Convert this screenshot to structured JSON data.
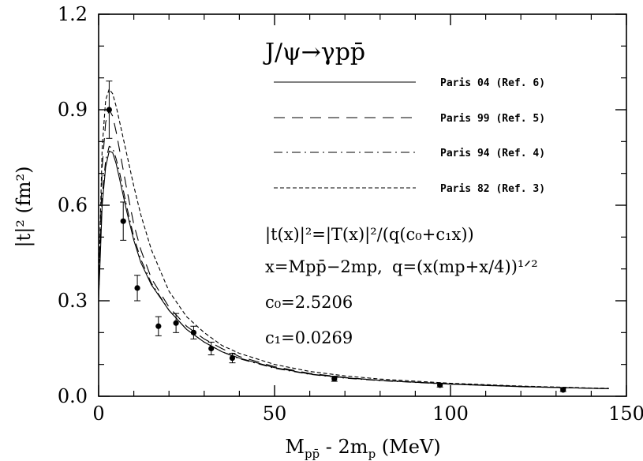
{
  "chart_data": {
    "type": "line",
    "title": "J/ψ→γpp̄",
    "xlabel": "Mpp̄ - 2mp (MeV)",
    "ylabel": "|t|² (fm²)",
    "xlim": [
      0,
      150
    ],
    "ylim": [
      0,
      1.2
    ],
    "xticks": [
      0,
      50,
      100,
      150
    ],
    "xtick_labels": [
      "0",
      "50",
      "100",
      "150"
    ],
    "yticks": [
      0,
      0.3,
      0.6,
      0.9,
      1.2
    ],
    "ytick_labels": [
      "0.0",
      "0.3",
      "0.6",
      "0.9",
      "1.2"
    ],
    "legend_position": "top-right",
    "grid": false,
    "series": [
      {
        "name": "Paris 04 (Ref. 6)",
        "style": "solid",
        "x": [
          0,
          1,
          2,
          3,
          4,
          5,
          6,
          8,
          10,
          12,
          15,
          20,
          25,
          30,
          35,
          40,
          50,
          60,
          70,
          80,
          100,
          120,
          140,
          145
        ],
        "y": [
          0.3,
          0.6,
          0.72,
          0.77,
          0.765,
          0.73,
          0.68,
          0.58,
          0.49,
          0.42,
          0.35,
          0.27,
          0.21,
          0.17,
          0.14,
          0.12,
          0.09,
          0.07,
          0.058,
          0.05,
          0.039,
          0.031,
          0.025,
          0.024
        ]
      },
      {
        "name": "Paris 99 (Ref. 5)",
        "style": "long-dash",
        "x": [
          0,
          1,
          2,
          3,
          4,
          5,
          6,
          8,
          10,
          12,
          15,
          20,
          25,
          30,
          35,
          40,
          50,
          60,
          70,
          80,
          100,
          120,
          140,
          145
        ],
        "y": [
          0.32,
          0.72,
          0.86,
          0.9,
          0.88,
          0.83,
          0.77,
          0.65,
          0.54,
          0.46,
          0.37,
          0.28,
          0.22,
          0.18,
          0.15,
          0.125,
          0.093,
          0.072,
          0.059,
          0.05,
          0.038,
          0.03,
          0.025,
          0.024
        ]
      },
      {
        "name": "Paris 94 (Ref. 4)",
        "style": "dash-dot",
        "x": [
          0,
          1,
          2,
          3,
          4,
          5,
          6,
          8,
          10,
          12,
          15,
          20,
          25,
          30,
          35,
          40,
          50,
          60,
          70,
          80,
          100,
          120,
          140,
          145
        ],
        "y": [
          0.31,
          0.63,
          0.74,
          0.785,
          0.78,
          0.745,
          0.7,
          0.595,
          0.5,
          0.43,
          0.355,
          0.27,
          0.21,
          0.17,
          0.14,
          0.118,
          0.088,
          0.069,
          0.057,
          0.049,
          0.038,
          0.03,
          0.025,
          0.024
        ]
      },
      {
        "name": "Paris 82 (Ref. 3)",
        "style": "short-dash",
        "x": [
          0,
          1,
          2,
          3,
          4,
          5,
          6,
          8,
          10,
          12,
          15,
          20,
          25,
          30,
          35,
          40,
          50,
          60,
          70,
          80,
          100,
          120,
          140,
          145
        ],
        "y": [
          0.34,
          0.78,
          0.93,
          0.965,
          0.95,
          0.91,
          0.86,
          0.76,
          0.66,
          0.57,
          0.46,
          0.33,
          0.25,
          0.2,
          0.16,
          0.135,
          0.1,
          0.078,
          0.064,
          0.054,
          0.041,
          0.032,
          0.026,
          0.025
        ]
      }
    ],
    "data_points": {
      "x": [
        3,
        7,
        11,
        17,
        22,
        27,
        32,
        38,
        67,
        97,
        132
      ],
      "y": [
        0.9,
        0.55,
        0.34,
        0.22,
        0.23,
        0.2,
        0.15,
        0.12,
        0.055,
        0.035,
        0.02
      ],
      "err": [
        0.09,
        0.06,
        0.04,
        0.03,
        0.03,
        0.02,
        0.02,
        0.015,
        0.008,
        0.006,
        0.005
      ]
    },
    "annotations": {
      "formula_1": "|t(x)|²=|T(x)|²/(q(c₀+c₁x))",
      "formula_2": "x=Mpp̄−2mp,",
      "formula_3": "q=(x(mp+x/4))¹ᐟ²",
      "c0": "c₀=2.5206",
      "c1": "c₁=0.0269"
    }
  }
}
